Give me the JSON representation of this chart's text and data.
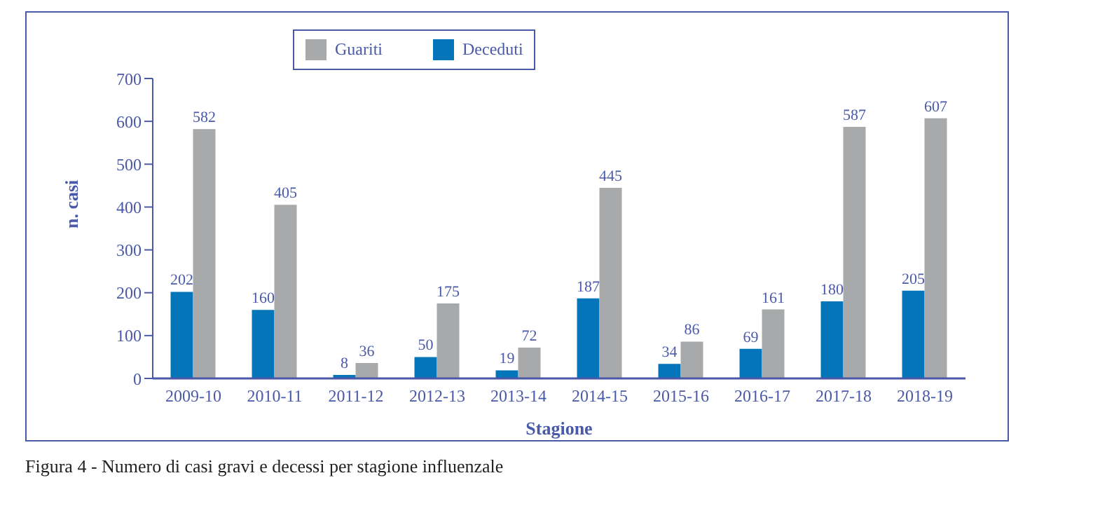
{
  "chart_data": {
    "type": "bar",
    "title": "Figura 4 - Numero di casi gravi e decessi per stagione influenzale",
    "xlabel": "Stagione",
    "ylabel": "n. casi",
    "categories": [
      "2009-10",
      "2010-11",
      "2011-12",
      "2012-13",
      "2013-14",
      "2014-15",
      "2015-16",
      "2016-17",
      "2017-18",
      "2018-19"
    ],
    "series": [
      {
        "name": "Deceduti",
        "color": "#0575ba",
        "values": [
          202,
          160,
          8,
          50,
          19,
          187,
          34,
          69,
          180,
          205
        ]
      },
      {
        "name": "Guariti",
        "color": "#a7a9aa",
        "values": [
          582,
          405,
          36,
          175,
          72,
          445,
          86,
          161,
          587,
          607
        ]
      }
    ],
    "ylim": [
      0,
      700
    ],
    "yticks": [
      0,
      100,
      200,
      300,
      400,
      500,
      600,
      700
    ],
    "data_labels": true,
    "legend": "top left",
    "grid": false
  }
}
